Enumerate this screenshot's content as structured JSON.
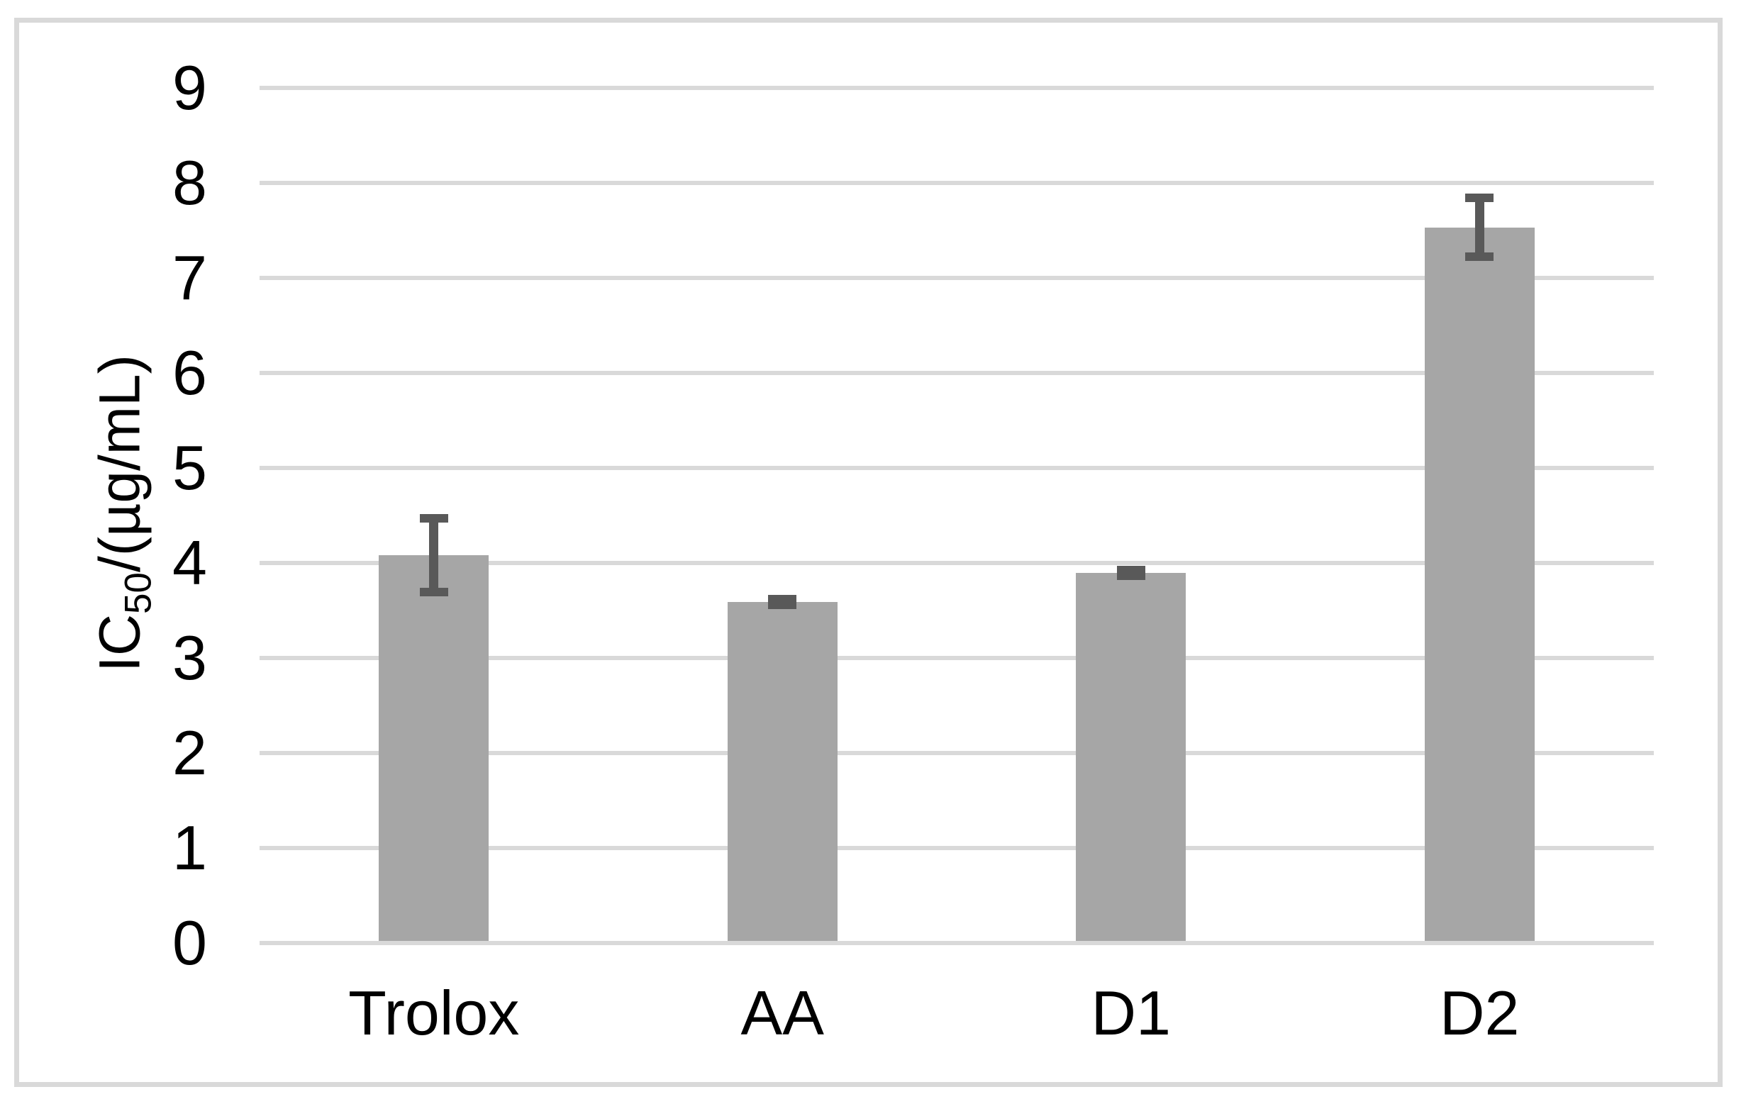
{
  "chart_data": {
    "type": "bar",
    "title": "",
    "xlabel": "",
    "ylabel": "IC50/(µg/mL)",
    "ylabel_parts": {
      "pre": "IC",
      "sub": "50",
      "post": "/(µg/mL)"
    },
    "categories": [
      "Trolox",
      "AA",
      "D1",
      "D2"
    ],
    "values": [
      4.06,
      3.57,
      3.87,
      7.51
    ],
    "errors": [
      0.39,
      0.03,
      0.03,
      0.31
    ],
    "yticks": [
      0,
      1,
      2,
      3,
      4,
      5,
      6,
      7,
      8,
      9
    ],
    "ylim": [
      0,
      9
    ],
    "grid": true,
    "legend": "none",
    "bar_color": "#a6a6a6",
    "error_bar_color": "#595959",
    "gridline_color": "#d9d9d9",
    "frame_border_color": "#d9d9d9",
    "text_color": "#000000",
    "background_color": "#ffffff"
  }
}
